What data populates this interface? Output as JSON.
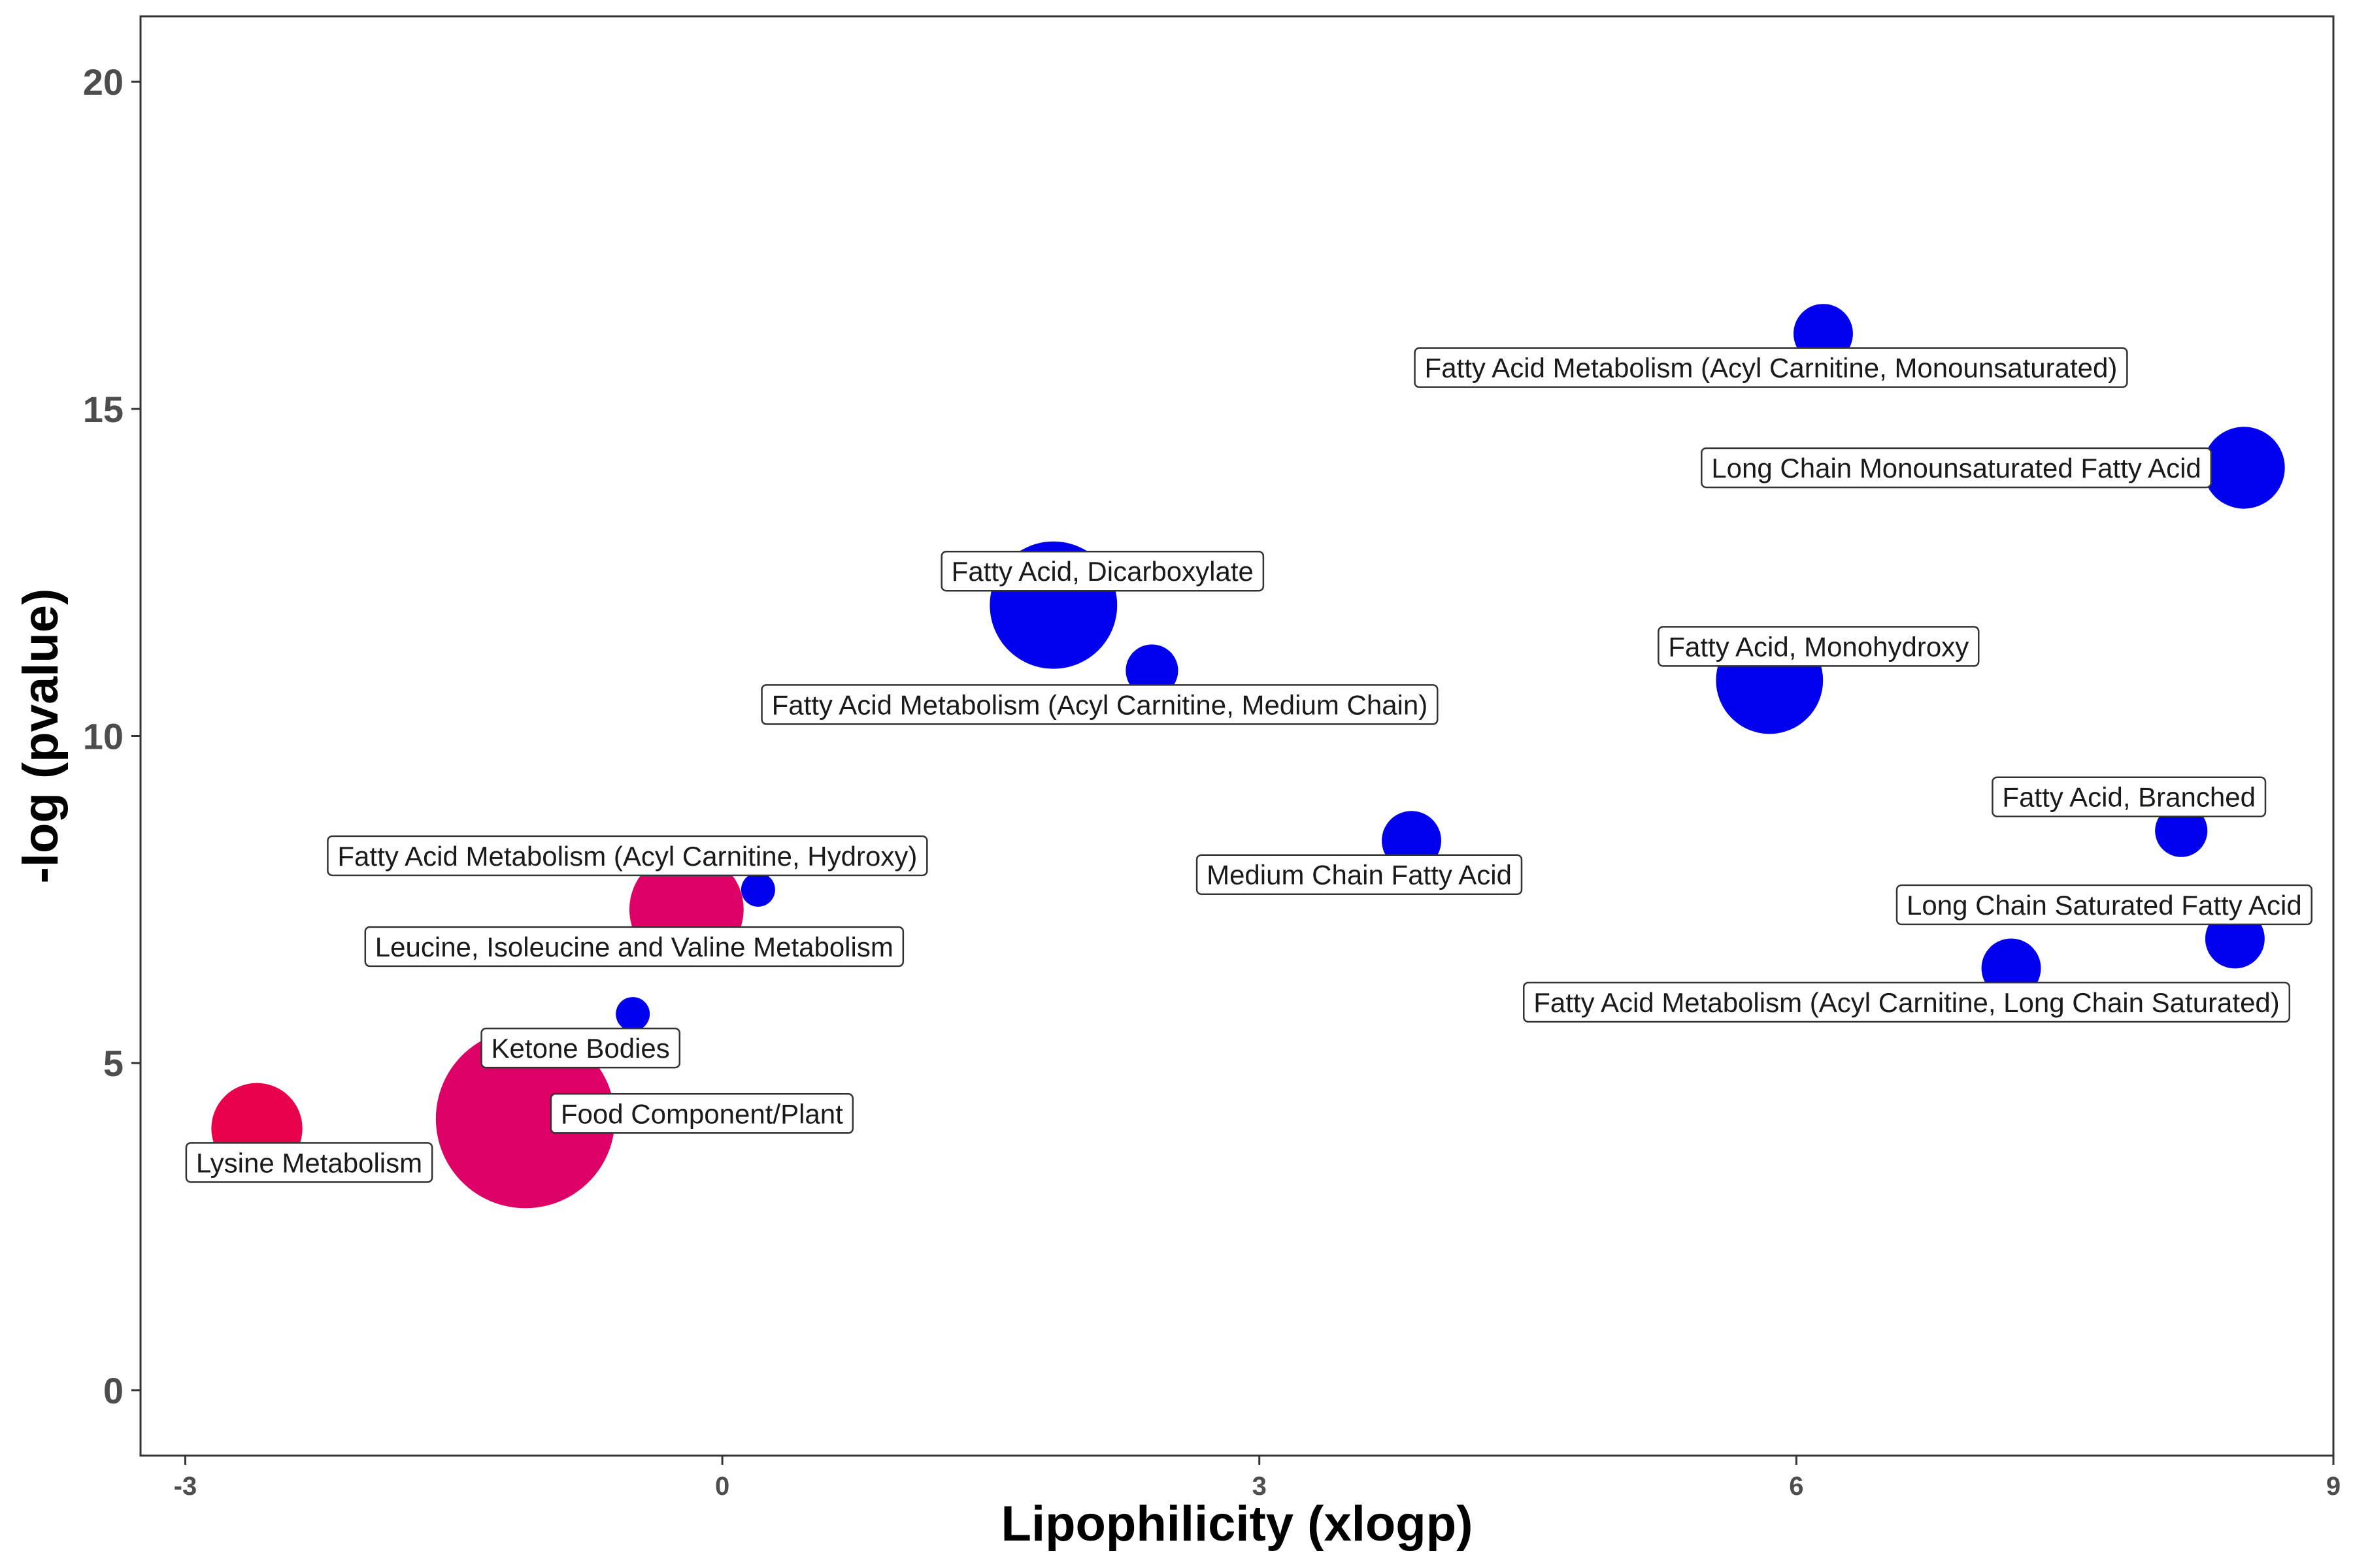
{
  "chart_data": {
    "type": "scatter",
    "xlabel": "Lipophilicity (xlogp)",
    "ylabel": "-log (pvalue)",
    "xlim": [
      -3.25,
      9.0
    ],
    "ylim": [
      -1.0,
      21.0
    ],
    "x_ticks": [
      -3,
      0,
      3,
      6,
      9
    ],
    "x_tick_labels": [
      "-3",
      "0",
      "3",
      "6",
      "9"
    ],
    "y_ticks": [
      0,
      5,
      10,
      15,
      20
    ],
    "y_tick_labels": [
      "0",
      "5",
      "10",
      "15",
      "20"
    ],
    "grid": false,
    "colors": {
      "blue": "#0000ee",
      "magenta": "#dd0066",
      "red": "#e8004a"
    },
    "points": [
      {
        "label": "Fatty Acid Metabolism (Acyl Carnitine, Monounsaturated)",
        "x": 6.15,
        "y": 16.15,
        "size": 2,
        "color": "#0000ee"
      },
      {
        "label": "Long Chain Monounsaturated Fatty Acid",
        "x": 8.5,
        "y": 14.1,
        "size": 4,
        "color": "#0000ee"
      },
      {
        "label": "Fatty Acid, Dicarboxylate",
        "x": 1.85,
        "y": 12.0,
        "size": 10,
        "color": "#0000ee"
      },
      {
        "label": "Fatty Acid Metabolism (Acyl Carnitine, Medium Chain)",
        "x": 2.4,
        "y": 11.0,
        "size": 1.5,
        "color": "#0000ee"
      },
      {
        "label": "Fatty Acid, Monohydroxy",
        "x": 5.85,
        "y": 10.85,
        "size": 7,
        "color": "#0000ee"
      },
      {
        "label": "Fatty Acid, Branched",
        "x": 8.15,
        "y": 8.55,
        "size": 1.5,
        "color": "#0000ee"
      },
      {
        "label": "Medium Chain Fatty Acid",
        "x": 3.85,
        "y": 8.4,
        "size": 2,
        "color": "#0000ee"
      },
      {
        "label": "Fatty Acid Metabolism (Acyl Carnitine, Hydroxy)",
        "x": 0.2,
        "y": 7.65,
        "size": 0.5,
        "color": "#0000ee"
      },
      {
        "label": "Leucine, Isoleucine and Valine Metabolism",
        "x": -0.2,
        "y": 7.35,
        "size": 8,
        "color": "#dd0066"
      },
      {
        "label": "Long Chain Saturated Fatty Acid",
        "x": 8.45,
        "y": 6.9,
        "size": 2,
        "color": "#0000ee"
      },
      {
        "label": "Fatty Acid Metabolism (Acyl Carnitine, Long Chain Saturated)",
        "x": 7.2,
        "y": 6.45,
        "size": 2,
        "color": "#0000ee"
      },
      {
        "label": "Ketone Bodies",
        "x": -0.5,
        "y": 5.75,
        "size": 0.5,
        "color": "#0000ee"
      },
      {
        "label": "Food Component/Plant",
        "x": -1.1,
        "y": 4.15,
        "size": 20,
        "color": "#dd0066"
      },
      {
        "label": "Lysine Metabolism",
        "x": -2.6,
        "y": 4.0,
        "size": 5,
        "color": "#e8004a"
      }
    ]
  }
}
